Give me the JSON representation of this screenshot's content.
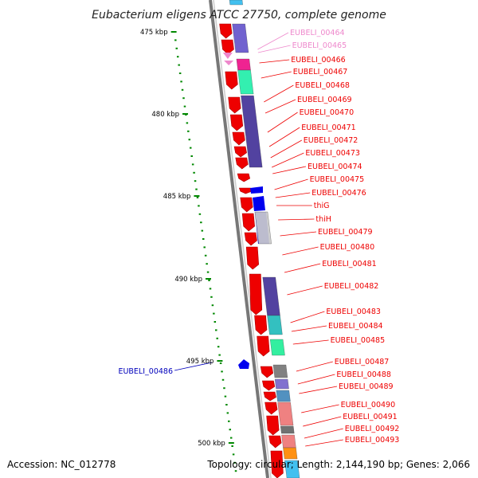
{
  "title": "Eubacterium eligens ATCC 27750, complete genome",
  "footer": {
    "accession": "Accession: NC_012778",
    "summary": "Topology: circular; Length: 2,144,190 bp; Genes: 2,066"
  },
  "ruler_labels": [
    "475 kbp",
    "480 kbp",
    "485 kbp",
    "490 kbp",
    "495 kbp",
    "500 kbp"
  ],
  "colors": {
    "forward": "#ee0000",
    "reverse": "#0000ee",
    "pink": "#ee88cc",
    "backbone": "#888888",
    "tick": "#008800"
  },
  "genes": [
    {
      "name": "EUBELI_00464",
      "color": "#ee88cc"
    },
    {
      "name": "EUBELI_00465",
      "color": "#ee88cc"
    },
    {
      "name": "EUBELI_00466",
      "color": "#ee0000"
    },
    {
      "name": "EUBELI_00467",
      "color": "#ee0000"
    },
    {
      "name": "EUBELI_00468",
      "color": "#ee0000"
    },
    {
      "name": "EUBELI_00469",
      "color": "#ee0000"
    },
    {
      "name": "EUBELI_00470",
      "color": "#ee0000"
    },
    {
      "name": "EUBELI_00471",
      "color": "#ee0000"
    },
    {
      "name": "EUBELI_00472",
      "color": "#ee0000"
    },
    {
      "name": "EUBELI_00473",
      "color": "#ee0000"
    },
    {
      "name": "EUBELI_00474",
      "color": "#ee0000"
    },
    {
      "name": "EUBELI_00475",
      "color": "#ee0000"
    },
    {
      "name": "EUBELI_00476",
      "color": "#ee0000"
    },
    {
      "name": "thiG",
      "color": "#ee0000"
    },
    {
      "name": "thiH",
      "color": "#ee0000"
    },
    {
      "name": "EUBELI_00479",
      "color": "#ee0000"
    },
    {
      "name": "EUBELI_00480",
      "color": "#ee0000"
    },
    {
      "name": "EUBELI_00481",
      "color": "#ee0000"
    },
    {
      "name": "EUBELI_00482",
      "color": "#ee0000"
    },
    {
      "name": "EUBELI_00483",
      "color": "#ee0000"
    },
    {
      "name": "EUBELI_00484",
      "color": "#ee0000"
    },
    {
      "name": "EUBELI_00485",
      "color": "#ee0000"
    },
    {
      "name": "EUBELI_00486",
      "color": "#0000bb"
    },
    {
      "name": "EUBELI_00487",
      "color": "#ee0000"
    },
    {
      "name": "EUBELI_00488",
      "color": "#ee0000"
    },
    {
      "name": "EUBELI_00489",
      "color": "#ee0000"
    },
    {
      "name": "EUBELI_00490",
      "color": "#ee0000"
    },
    {
      "name": "EUBELI_00491",
      "color": "#ee0000"
    },
    {
      "name": "EUBELI_00492",
      "color": "#ee0000"
    },
    {
      "name": "EUBELI_00493",
      "color": "#ee0000"
    }
  ]
}
